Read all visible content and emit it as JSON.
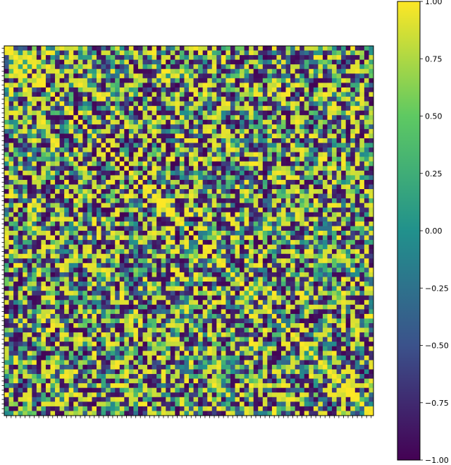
{
  "chart_data": {
    "type": "heatmap",
    "title": "",
    "xlabel": "",
    "ylabel": "",
    "n_rows": 80,
    "n_cols": 80,
    "value_range": [
      -1.0,
      1.0
    ],
    "symmetric": true,
    "diagonal_value": 1.0,
    "colormap": "viridis",
    "colormap_stops": [
      "#440154",
      "#3b528b",
      "#21918c",
      "#5ec962",
      "#fde725"
    ],
    "x_tick_labels_visible": false,
    "y_tick_labels_visible": false,
    "colorbar": {
      "ticks": [
        1.0,
        0.75,
        0.5,
        0.25,
        0.0,
        -0.25,
        -0.5,
        -0.75,
        -1.0
      ],
      "tick_labels": [
        "1.00",
        "0.75",
        "0.50",
        "0.25",
        "0.00",
        "−0.25",
        "−0.50",
        "−0.75",
        "−1.00"
      ]
    }
  }
}
